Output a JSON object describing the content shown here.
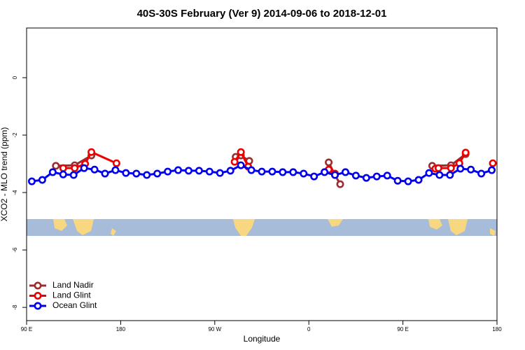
{
  "chart_data": {
    "type": "line",
    "title": "40S-30S February (Ver 9)   2014-09-06 to 2018-12-01",
    "x_label": "Longitude",
    "y_label": "XCO2 - MLO trend (ppm)",
    "xlim": [
      90,
      540
    ],
    "xticks": [
      {
        "value": 90,
        "label": "90 E"
      },
      180,
      {
        "value": 270,
        "label": "90 W"
      },
      {
        "value": 360,
        "label": "0"
      },
      {
        "value": 450,
        "label": "90 E"
      },
      {
        "value": 540,
        "label": "180"
      }
    ],
    "ylim": [
      -8.46,
      1.73
    ],
    "yticks": [
      0,
      -2,
      -4,
      -6,
      -8
    ],
    "legend": "bottom-left",
    "series": [
      {
        "name": "Land Nadir",
        "color": "#9b2d30",
        "x": [
          118,
          136,
          152,
          null,
          290,
          295,
          303,
          null,
          379,
          385,
          390,
          null,
          478,
          496,
          510
        ],
        "values": [
          -3.07,
          -3.05,
          -2.71,
          null,
          -2.76,
          -2.71,
          -2.9,
          null,
          -2.95,
          -3.39,
          -3.71,
          null,
          -3.07,
          -3.05,
          -2.66
        ]
      },
      {
        "name": "Land Glint",
        "color": "#ee0000",
        "x": [
          125,
          136,
          146,
          152,
          176,
          null,
          289,
          295,
          302,
          null,
          379,
          385,
          null,
          481,
          484,
          496,
          504,
          510,
          null,
          536
        ],
        "values": [
          -3.15,
          -3.15,
          -3.0,
          -2.59,
          -2.98,
          null,
          -2.93,
          -2.59,
          -3.1,
          null,
          -3.2,
          -3.34,
          null,
          -3.17,
          -3.15,
          -3.15,
          -2.98,
          -2.61,
          null,
          -2.98
        ]
      },
      {
        "name": "Ocean Glint",
        "color": "#0000ee",
        "x": [
          95,
          105,
          115,
          125,
          135,
          145,
          155,
          165,
          175,
          185,
          195,
          205,
          215,
          225,
          235,
          245,
          255,
          265,
          275,
          285,
          295,
          305,
          315,
          325,
          335,
          345,
          355,
          365,
          375,
          385,
          395,
          405,
          415,
          425,
          435,
          445,
          455,
          465,
          475,
          485,
          495,
          505,
          515,
          525,
          535
        ],
        "values": [
          -3.61,
          -3.56,
          -3.29,
          -3.37,
          -3.39,
          -3.15,
          -3.2,
          -3.34,
          -3.22,
          -3.32,
          -3.34,
          -3.39,
          -3.34,
          -3.27,
          -3.22,
          -3.24,
          -3.24,
          -3.27,
          -3.32,
          -3.24,
          -3.05,
          -3.22,
          -3.27,
          -3.27,
          -3.29,
          -3.29,
          -3.34,
          -3.44,
          -3.29,
          -3.39,
          -3.29,
          -3.41,
          -3.49,
          -3.44,
          -3.41,
          -3.59,
          -3.61,
          -3.56,
          -3.32,
          -3.39,
          -3.39,
          -3.17,
          -3.2,
          -3.34,
          -3.22
        ]
      }
    ]
  }
}
